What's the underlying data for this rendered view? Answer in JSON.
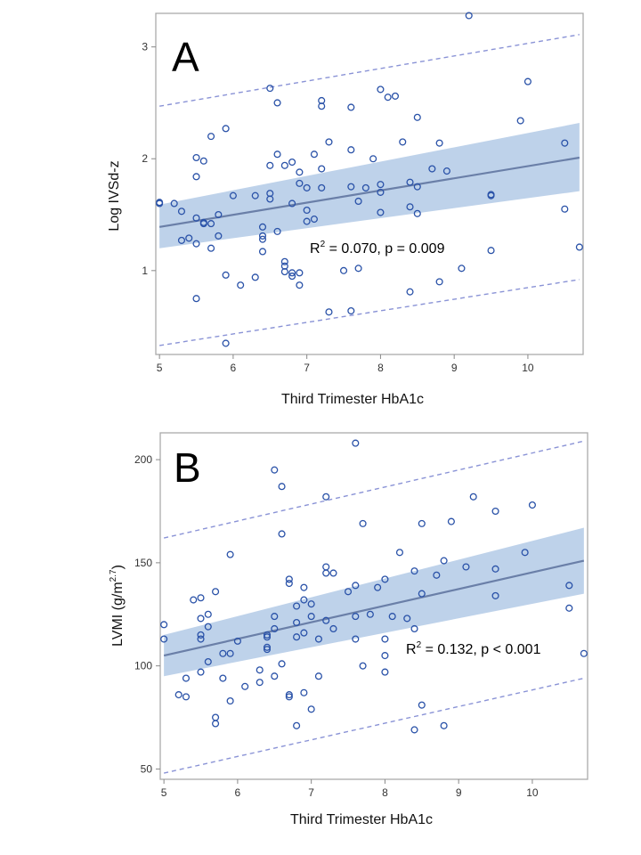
{
  "chart_data": [
    {
      "type": "scatter",
      "panel_label": "A",
      "xlabel": "Third Trimester HbA1c",
      "ylabel": "Log IVSd-z",
      "xlim": [
        4.95,
        10.75
      ],
      "ylim": [
        0.25,
        3.3
      ],
      "xticks": [
        5,
        6,
        7,
        8,
        9,
        10
      ],
      "yticks": [
        1,
        2,
        3
      ],
      "annotation": {
        "text": "R2 = 0.070, p = 0.009",
        "prefix": "R",
        "sup": "2",
        "rest": " = 0.070, p = 0.009"
      },
      "regression": {
        "x": [
          5,
          10.7
        ],
        "y": [
          1.39,
          2.01
        ]
      },
      "ci_band": {
        "x": [
          5,
          10.7
        ],
        "lower": [
          1.2,
          1.71
        ],
        "upper": [
          1.59,
          2.32
        ]
      },
      "prediction_interval": {
        "x": [
          5,
          10.7
        ],
        "lower": [
          0.33,
          0.92
        ],
        "upper": [
          2.47,
          3.11
        ]
      },
      "colors": {
        "points": "#2a52a8",
        "line": "#6a7fa8",
        "band": "#b7cde8",
        "pred": "#8a93d6",
        "frame": "#aaaaaa"
      },
      "points": [
        [
          5.0,
          1.61
        ],
        [
          5.0,
          1.6
        ],
        [
          5.2,
          1.6
        ],
        [
          5.3,
          1.53
        ],
        [
          5.3,
          1.27
        ],
        [
          5.4,
          1.29
        ],
        [
          5.5,
          2.01
        ],
        [
          5.5,
          1.84
        ],
        [
          5.5,
          1.47
        ],
        [
          5.5,
          1.24
        ],
        [
          5.5,
          0.75
        ],
        [
          5.6,
          1.98
        ],
        [
          5.6,
          1.42
        ],
        [
          5.6,
          1.43
        ],
        [
          5.7,
          2.2
        ],
        [
          5.7,
          1.42
        ],
        [
          5.7,
          1.2
        ],
        [
          5.8,
          1.5
        ],
        [
          5.8,
          1.31
        ],
        [
          5.9,
          2.27
        ],
        [
          5.9,
          0.96
        ],
        [
          5.9,
          0.35
        ],
        [
          6.0,
          1.67
        ],
        [
          6.1,
          0.87
        ],
        [
          6.3,
          1.67
        ],
        [
          6.3,
          0.94
        ],
        [
          6.4,
          1.39
        ],
        [
          6.4,
          1.31
        ],
        [
          6.4,
          1.28
        ],
        [
          6.4,
          1.17
        ],
        [
          6.5,
          2.63
        ],
        [
          6.5,
          1.94
        ],
        [
          6.5,
          1.69
        ],
        [
          6.5,
          1.64
        ],
        [
          6.6,
          2.5
        ],
        [
          6.6,
          2.04
        ],
        [
          6.6,
          1.35
        ],
        [
          6.7,
          1.94
        ],
        [
          6.7,
          1.08
        ],
        [
          6.7,
          1.04
        ],
        [
          6.7,
          0.99
        ],
        [
          6.8,
          1.97
        ],
        [
          6.8,
          1.6
        ],
        [
          6.8,
          0.98
        ],
        [
          6.8,
          0.95
        ],
        [
          6.9,
          1.88
        ],
        [
          6.9,
          1.78
        ],
        [
          6.9,
          0.98
        ],
        [
          6.9,
          0.87
        ],
        [
          7.0,
          1.74
        ],
        [
          7.0,
          1.54
        ],
        [
          7.0,
          1.44
        ],
        [
          7.1,
          2.04
        ],
        [
          7.1,
          1.46
        ],
        [
          7.2,
          2.52
        ],
        [
          7.2,
          2.47
        ],
        [
          7.2,
          1.91
        ],
        [
          7.2,
          1.74
        ],
        [
          7.3,
          2.15
        ],
        [
          7.3,
          0.63
        ],
        [
          7.5,
          1.0
        ],
        [
          7.6,
          2.46
        ],
        [
          7.6,
          2.08
        ],
        [
          7.6,
          1.75
        ],
        [
          7.6,
          0.64
        ],
        [
          7.7,
          1.62
        ],
        [
          7.7,
          1.02
        ],
        [
          7.8,
          1.74
        ],
        [
          7.9,
          2.0
        ],
        [
          8.0,
          2.62
        ],
        [
          8.0,
          1.77
        ],
        [
          8.0,
          1.7
        ],
        [
          8.0,
          1.52
        ],
        [
          8.1,
          2.55
        ],
        [
          8.2,
          2.56
        ],
        [
          8.3,
          2.15
        ],
        [
          8.4,
          1.79
        ],
        [
          8.4,
          1.57
        ],
        [
          8.4,
          0.81
        ],
        [
          8.5,
          2.37
        ],
        [
          8.5,
          1.75
        ],
        [
          8.5,
          1.51
        ],
        [
          8.7,
          1.91
        ],
        [
          8.8,
          2.14
        ],
        [
          8.8,
          0.9
        ],
        [
          8.9,
          1.89
        ],
        [
          9.1,
          1.02
        ],
        [
          9.2,
          3.28
        ],
        [
          9.5,
          1.68
        ],
        [
          9.5,
          1.67
        ],
        [
          9.5,
          1.18
        ],
        [
          9.9,
          2.34
        ],
        [
          10.0,
          2.69
        ],
        [
          10.5,
          2.14
        ],
        [
          10.5,
          1.55
        ],
        [
          10.7,
          1.21
        ]
      ]
    },
    {
      "type": "scatter",
      "panel_label": "B",
      "xlabel": "Third Trimester HbA1c",
      "ylabel": "LVMI (g/m2.7)",
      "ylabel_parts": {
        "main": "LVMI (g/m",
        "sup": "2.7",
        "end": ")"
      },
      "xlim": [
        4.95,
        10.75
      ],
      "ylim": [
        45,
        213
      ],
      "xticks": [
        5,
        6,
        7,
        8,
        9,
        10
      ],
      "yticks": [
        50,
        100,
        150,
        200
      ],
      "annotation": {
        "text": "R2 = 0.132, p < 0.001",
        "prefix": "R",
        "sup": "2",
        "rest": " = 0.132, p < 0.001"
      },
      "regression": {
        "x": [
          5,
          10.7
        ],
        "y": [
          105,
          151
        ]
      },
      "ci_band": {
        "x": [
          5,
          10.7
        ],
        "lower": [
          95,
          135
        ],
        "upper": [
          115,
          167
        ]
      },
      "prediction_interval": {
        "x": [
          5,
          10.7
        ],
        "lower": [
          48,
          94
        ],
        "upper": [
          162,
          209
        ]
      },
      "colors": {
        "points": "#2a52a8",
        "line": "#6a7fa8",
        "band": "#b7cde8",
        "pred": "#8a93d6",
        "frame": "#aaaaaa"
      },
      "points": [
        [
          5.0,
          120
        ],
        [
          5.0,
          113
        ],
        [
          5.2,
          86
        ],
        [
          5.3,
          94
        ],
        [
          5.3,
          85
        ],
        [
          5.4,
          132
        ],
        [
          5.5,
          133
        ],
        [
          5.5,
          123
        ],
        [
          5.5,
          115
        ],
        [
          5.5,
          113
        ],
        [
          5.5,
          97
        ],
        [
          5.6,
          125
        ],
        [
          5.6,
          119
        ],
        [
          5.6,
          102
        ],
        [
          5.7,
          136
        ],
        [
          5.7,
          75
        ],
        [
          5.7,
          72
        ],
        [
          5.8,
          106
        ],
        [
          5.8,
          94
        ],
        [
          5.9,
          154
        ],
        [
          5.9,
          106
        ],
        [
          5.9,
          83
        ],
        [
          6.0,
          112
        ],
        [
          6.1,
          90
        ],
        [
          6.3,
          98
        ],
        [
          6.3,
          92
        ],
        [
          6.4,
          115
        ],
        [
          6.4,
          114
        ],
        [
          6.4,
          109
        ],
        [
          6.4,
          108
        ],
        [
          6.5,
          195
        ],
        [
          6.5,
          124
        ],
        [
          6.5,
          118
        ],
        [
          6.5,
          95
        ],
        [
          6.6,
          187
        ],
        [
          6.6,
          164
        ],
        [
          6.6,
          101
        ],
        [
          6.7,
          142
        ],
        [
          6.7,
          140
        ],
        [
          6.7,
          86
        ],
        [
          6.7,
          85
        ],
        [
          6.8,
          129
        ],
        [
          6.8,
          121
        ],
        [
          6.8,
          114
        ],
        [
          6.8,
          71
        ],
        [
          6.9,
          138
        ],
        [
          6.9,
          132
        ],
        [
          6.9,
          116
        ],
        [
          6.9,
          87
        ],
        [
          7.0,
          130
        ],
        [
          7.0,
          124
        ],
        [
          7.0,
          79
        ],
        [
          7.1,
          113
        ],
        [
          7.1,
          95
        ],
        [
          7.2,
          182
        ],
        [
          7.2,
          148
        ],
        [
          7.2,
          145
        ],
        [
          7.2,
          122
        ],
        [
          7.3,
          145
        ],
        [
          7.3,
          118
        ],
        [
          7.5,
          136
        ],
        [
          7.6,
          208
        ],
        [
          7.6,
          139
        ],
        [
          7.6,
          124
        ],
        [
          7.6,
          113
        ],
        [
          7.7,
          169
        ],
        [
          7.7,
          100
        ],
        [
          7.8,
          125
        ],
        [
          7.9,
          138
        ],
        [
          8.0,
          142
        ],
        [
          8.0,
          113
        ],
        [
          8.0,
          105
        ],
        [
          8.0,
          97
        ],
        [
          8.1,
          124
        ],
        [
          8.2,
          155
        ],
        [
          8.3,
          123
        ],
        [
          8.4,
          146
        ],
        [
          8.4,
          118
        ],
        [
          8.4,
          69
        ],
        [
          8.5,
          169
        ],
        [
          8.5,
          135
        ],
        [
          8.5,
          81
        ],
        [
          8.7,
          144
        ],
        [
          8.8,
          151
        ],
        [
          8.8,
          71
        ],
        [
          8.9,
          170
        ],
        [
          9.1,
          148
        ],
        [
          9.2,
          182
        ],
        [
          9.5,
          175
        ],
        [
          9.5,
          147
        ],
        [
          9.5,
          134
        ],
        [
          9.9,
          155
        ],
        [
          10.0,
          178
        ],
        [
          10.5,
          139
        ],
        [
          10.5,
          128
        ],
        [
          10.7,
          106
        ]
      ]
    }
  ]
}
